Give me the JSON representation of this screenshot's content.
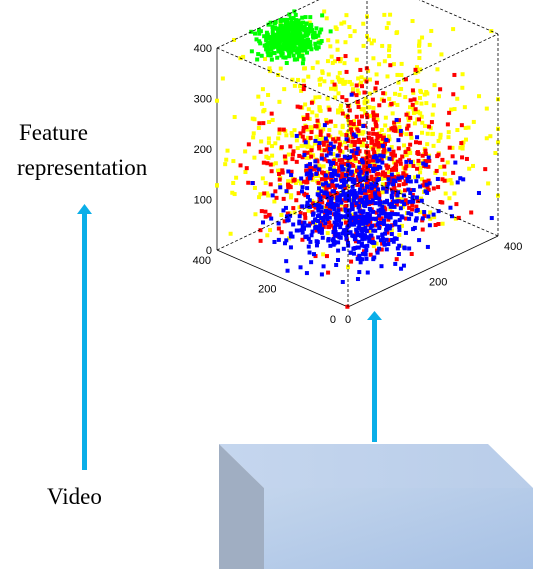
{
  "labels": {
    "feature_line1": "Feature",
    "feature_line2": "representation",
    "video": "Video"
  },
  "colors": {
    "arrow": "#0aaee8",
    "series": [
      "#0000ff",
      "#ff0000",
      "#ffff00",
      "#00ff00"
    ],
    "box_front_top": "#bcd0ea",
    "box_front_bottom": "#a9c3e6",
    "box_side": "#a0aec2"
  },
  "icons": [
    "up-arrow-left",
    "up-arrow-right",
    "video-block-3d"
  ],
  "chart_data": {
    "type": "scatter",
    "dimensions": 3,
    "zlim": [
      0,
      400
    ],
    "xlim": [
      0,
      400
    ],
    "ylim": [
      0,
      400
    ],
    "z_ticks": [
      "0",
      "100",
      "200",
      "300",
      "400"
    ],
    "x_ticks": [
      "0",
      "200",
      "400"
    ],
    "y_ticks": [
      "0",
      "200",
      "400"
    ],
    "grid": false,
    "box": true,
    "series": [
      {
        "color": "#0000ff",
        "center": [
          170,
          170,
          80
        ],
        "spread": 70,
        "count": 650
      },
      {
        "color": "#ff0000",
        "center": [
          190,
          190,
          140
        ],
        "spread": 95,
        "count": 650
      },
      {
        "color": "#ffff00",
        "center": [
          200,
          200,
          200
        ],
        "spread": 130,
        "count": 650
      },
      {
        "color": "#00ff00",
        "center": [
          150,
          350,
          380
        ],
        "spread": 28,
        "count": 420
      }
    ]
  }
}
